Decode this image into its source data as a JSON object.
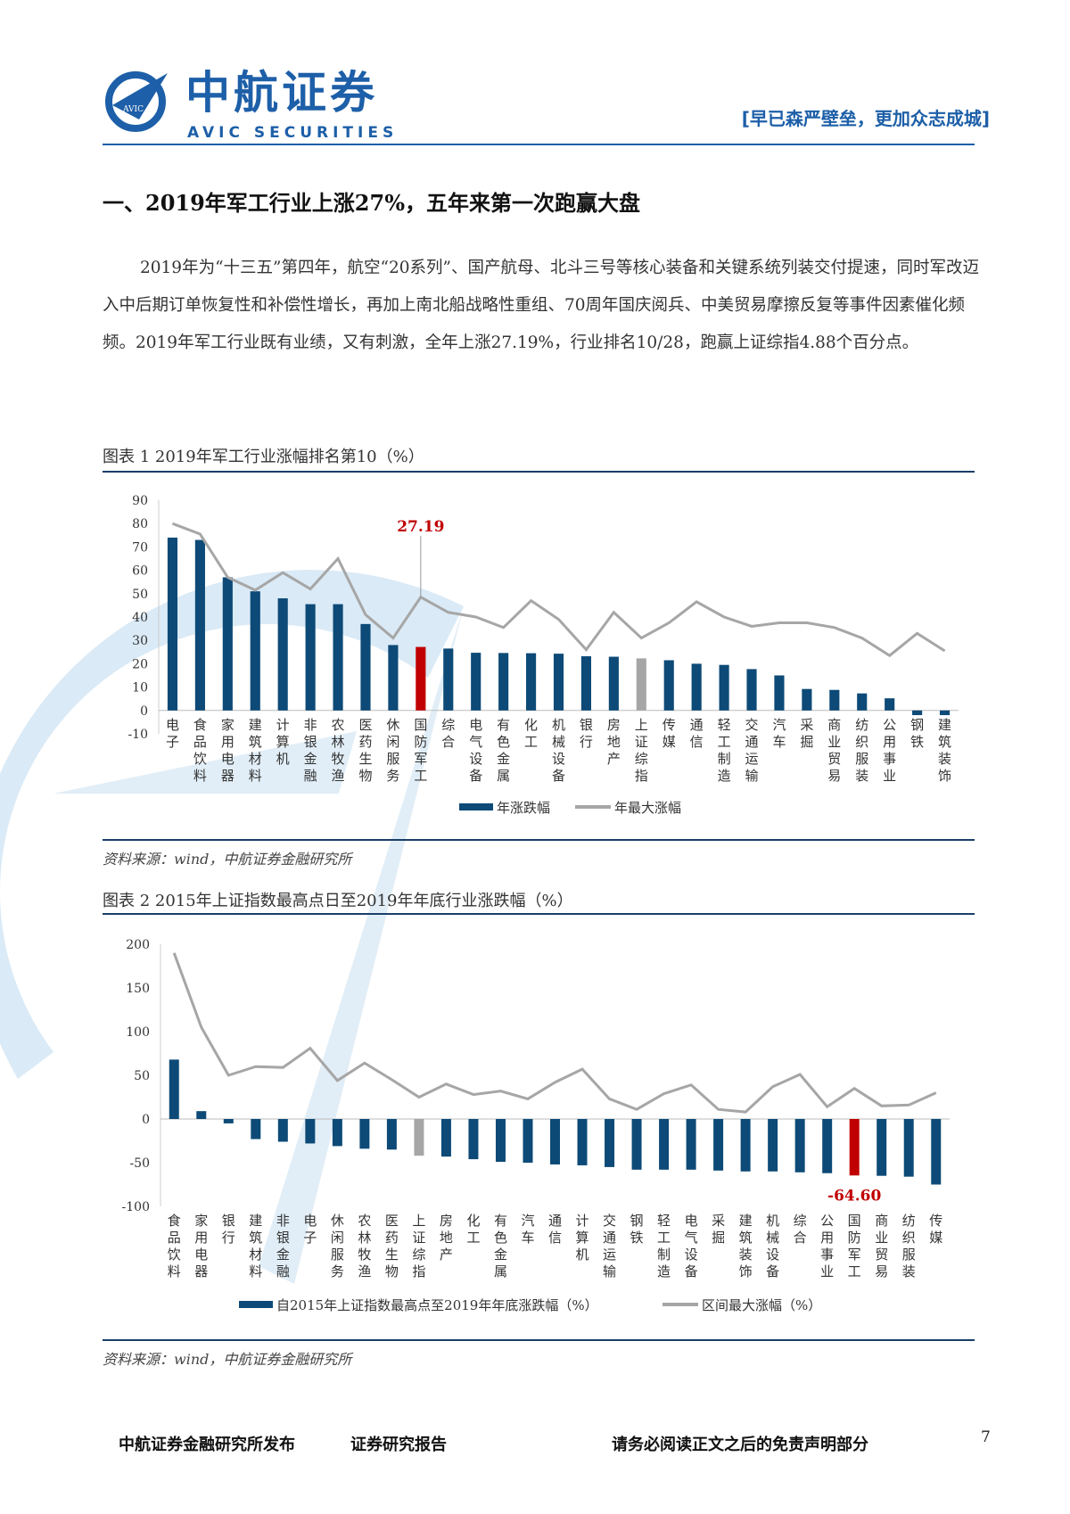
{
  "header": {
    "logo_cn": "中航证券",
    "logo_en": "AVIC SECURITIES",
    "logo_badge": "AVIC",
    "slogan": "[早已森严壁垒，更加众志成城]",
    "brand_color": "#1d5fa8"
  },
  "section_title": "一、2019年军工行业上涨27%，五年来第一次跑赢大盘",
  "paragraph": "2019年为“十三五”第四年，航空“20系列”、国产航母、北斗三号等核心装备和关键系统列装交付提速，同时军改迈入中后期订单恢复性和补偿性增长，再加上南北船战略性重组、70周年国庆阅兵、中美贸易摩擦反复等事件因素催化频频。2019年军工行业既有业绩，又有刺激，全年上涨27.19%，行业排名10/28，跑赢上证综指4.88个百分点。",
  "figure1": {
    "caption": "图表 1 2019年军工行业涨幅排名第10（%）",
    "source": "资料来源：wind，中航证券金融研究所"
  },
  "figure2": {
    "caption": "图表 2 2015年上证指数最高点日至2019年年底行业涨跌幅（%）",
    "source": "资料来源：wind，中航证券金融研究所"
  },
  "chart_data": [
    {
      "type": "bar",
      "ylim": [
        -10,
        90
      ],
      "yticks": [
        -10,
        0,
        10,
        20,
        30,
        40,
        50,
        60,
        70,
        80,
        90
      ],
      "categories": [
        "电子",
        "食品饮料",
        "家用电器",
        "建筑材料",
        "计算机",
        "非银金融",
        "农林牧渔",
        "医药生物",
        "休闲服务",
        "国防军工",
        "综合",
        "电气设备",
        "有色金属",
        "化工",
        "机械设备",
        "银行",
        "房地产",
        "上证综指",
        "传媒",
        "通信",
        "轻工制造",
        "交通运输",
        "汽车",
        "采掘",
        "商业贸易",
        "纺织服装",
        "公用事业",
        "钢铁",
        "建筑装饰"
      ],
      "series": [
        {
          "name": "年涨跌幅",
          "type": "bar",
          "color": "#0d4a77",
          "values": [
            74,
            73,
            57,
            51,
            48,
            45.5,
            45.5,
            37,
            28,
            27.19,
            26.5,
            24.7,
            24.6,
            24.5,
            24.3,
            23.2,
            23,
            22.3,
            21.5,
            20,
            19.5,
            17.7,
            15,
            9.2,
            8.8,
            7.3,
            5.2,
            -2,
            -2
          ]
        },
        {
          "name": "年最大涨幅",
          "type": "line",
          "color": "#a6a6a6",
          "values": [
            80,
            75.5,
            57,
            51.5,
            59,
            52,
            65,
            41,
            31,
            48.5,
            42,
            40,
            35.5,
            47,
            39,
            26,
            42,
            31,
            37.5,
            46.5,
            40,
            36,
            37.5,
            37.5,
            35.5,
            31,
            23.5,
            33,
            25.5
          ]
        }
      ],
      "highlight": {
        "category": "国防军工",
        "color": "#c00000",
        "label": "27.19"
      },
      "benchmark": {
        "category": "上证综指",
        "color": "#a6a6a6"
      },
      "legend": "bottom"
    },
    {
      "type": "bar",
      "ylim": [
        -100,
        200
      ],
      "yticks": [
        -100,
        -50,
        0,
        50,
        100,
        150,
        200
      ],
      "categories": [
        "食品饮料",
        "家用电器",
        "银行",
        "建筑材料",
        "非银金融",
        "电子",
        "休闲服务",
        "农林牧渔",
        "医药生物",
        "上证综指",
        "房地产",
        "化工",
        "有色金属",
        "汽车",
        "通信",
        "计算机",
        "交通运输",
        "钢铁",
        "轻工制造",
        "电气设备",
        "采掘",
        "建筑装饰",
        "机械设备",
        "综合",
        "公用事业",
        "国防军工",
        "商业贸易",
        "纺织服装",
        "传媒"
      ],
      "series": [
        {
          "name": "自2015年上证指数最高点至2019年年底涨跌幅（%）",
          "type": "bar",
          "color": "#0d4a77",
          "values": [
            68,
            9,
            -5,
            -23,
            -26,
            -28,
            -31,
            -34,
            -35,
            -42,
            -43,
            -46,
            -49,
            -50,
            -52,
            -53,
            -55,
            -58,
            -58,
            -58,
            -59,
            -60,
            -60,
            -61,
            -62,
            -64.6,
            -65,
            -66,
            -75
          ]
        },
        {
          "name": "区间最大涨幅（%）",
          "type": "line",
          "color": "#a6a6a6",
          "values": [
            190,
            105,
            50,
            60,
            59,
            81,
            44,
            64,
            45,
            25,
            40,
            28,
            32,
            23,
            42,
            57,
            23,
            11,
            29,
            39,
            11,
            8,
            37,
            51,
            14,
            35,
            15,
            16,
            30
          ]
        }
      ],
      "highlight": {
        "category": "国防军工",
        "color": "#c00000",
        "label": "-64.60"
      },
      "benchmark": {
        "category": "上证综指",
        "color": "#a6a6a6"
      },
      "legend": "bottom"
    }
  ],
  "footer": {
    "publisher": "中航证券金融研究所发布",
    "report_type": "证券研究报告",
    "disclaimer": "请务必阅读正文之后的免责声明部分",
    "page_number": "7"
  }
}
